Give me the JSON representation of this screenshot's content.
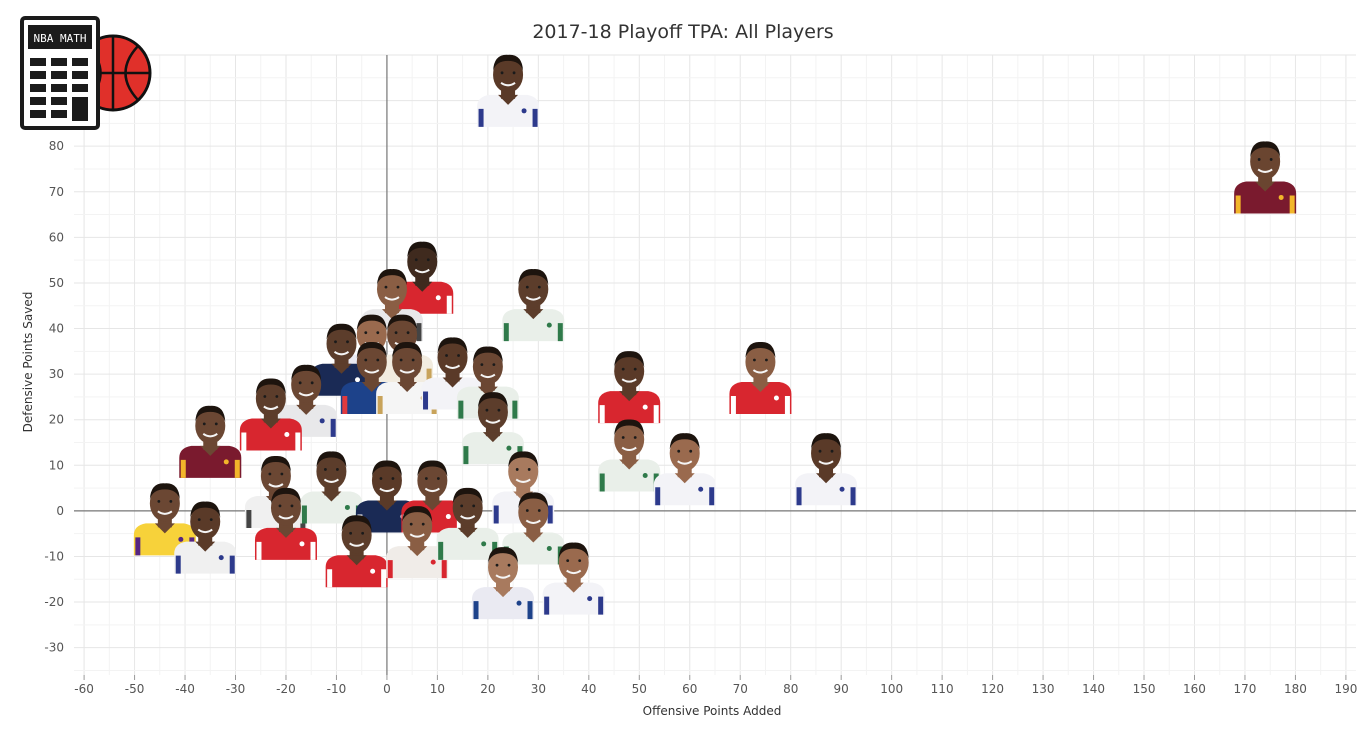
{
  "chart_data": {
    "type": "scatter",
    "title": "2017-18 Playoff TPA: All Players",
    "xlabel": "Offensive Points Added",
    "ylabel": "Defensive Points Saved",
    "xlim": [
      -62,
      192
    ],
    "ylim": [
      -36,
      100
    ],
    "xticks": [
      -60,
      -50,
      -40,
      -30,
      -20,
      -10,
      0,
      10,
      20,
      30,
      40,
      50,
      60,
      70,
      80,
      90,
      100,
      110,
      120,
      130,
      140,
      150,
      160,
      170,
      180,
      190
    ],
    "yticks": [
      -30,
      -20,
      -10,
      0,
      10,
      20,
      30,
      40,
      50,
      60,
      70,
      80
    ],
    "grid": true,
    "points": [
      {
        "x": 24,
        "y": 86,
        "jersey": "#f3f3f7",
        "trim": "#2d3a8c",
        "skin": "#5a3a28"
      },
      {
        "x": 174,
        "y": 67,
        "jersey": "#7a1a2e",
        "trim": "#f2b62a",
        "skin": "#6a4530"
      },
      {
        "x": 7,
        "y": 45,
        "jersey": "#d8262f",
        "trim": "#ffffff",
        "skin": "#3f2a1e"
      },
      {
        "x": 29,
        "y": 39,
        "jersey": "#e9efe9",
        "trim": "#2f7a4a",
        "skin": "#5c3d2b"
      },
      {
        "x": 1,
        "y": 39,
        "jersey": "#e8e8ea",
        "trim": "#444444",
        "skin": "#8a5e44"
      },
      {
        "x": -3,
        "y": 29,
        "jersey": "#eaeaf2",
        "trim": "#1d428a",
        "skin": "#9a6a4e"
      },
      {
        "x": 3,
        "y": 29,
        "jersey": "#f2ece0",
        "trim": "#c8a35a",
        "skin": "#6b4733"
      },
      {
        "x": -9,
        "y": 27,
        "jersey": "#1a2a55",
        "trim": "#ffffff",
        "skin": "#5c3d2b"
      },
      {
        "x": -3,
        "y": 23,
        "jersey": "#1d428a",
        "trim": "#e03a3e",
        "skin": "#6b4733"
      },
      {
        "x": 4,
        "y": 23,
        "jersey": "#f5f5f5",
        "trim": "#c8a35a",
        "skin": "#6b4733"
      },
      {
        "x": 13,
        "y": 24,
        "jersey": "#f3f3f7",
        "trim": "#2d3a8c",
        "skin": "#5a3a28"
      },
      {
        "x": 20,
        "y": 22,
        "jersey": "#e9efe9",
        "trim": "#2f7a4a",
        "skin": "#6b4733"
      },
      {
        "x": 48,
        "y": 21,
        "jersey": "#d8262f",
        "trim": "#ffffff",
        "skin": "#5a3a28"
      },
      {
        "x": 74,
        "y": 23,
        "jersey": "#d8262f",
        "trim": "#ffffff",
        "skin": "#8a5e44"
      },
      {
        "x": -16,
        "y": 18,
        "jersey": "#e8e8ea",
        "trim": "#2d3a8c",
        "skin": "#6b4733"
      },
      {
        "x": -23,
        "y": 15,
        "jersey": "#d8262f",
        "trim": "#ffffff",
        "skin": "#5c3d2b"
      },
      {
        "x": -35,
        "y": 9,
        "jersey": "#7a1a2e",
        "trim": "#f2b62a",
        "skin": "#6b4733"
      },
      {
        "x": 21,
        "y": 12,
        "jersey": "#e9efe9",
        "trim": "#2f7a4a",
        "skin": "#5c3d2b"
      },
      {
        "x": 48,
        "y": 6,
        "jersey": "#e9efe9",
        "trim": "#2f7a4a",
        "skin": "#8a5e44"
      },
      {
        "x": 59,
        "y": 3,
        "jersey": "#f3f3f7",
        "trim": "#2d3a8c",
        "skin": "#9a6a4e"
      },
      {
        "x": 87,
        "y": 3,
        "jersey": "#f3f3f7",
        "trim": "#2d3a8c",
        "skin": "#5a3a28"
      },
      {
        "x": -22,
        "y": -2,
        "jersey": "#f0f0f0",
        "trim": "#444444",
        "skin": "#6b4733"
      },
      {
        "x": -11,
        "y": -1,
        "jersey": "#e9efe9",
        "trim": "#2f7a4a",
        "skin": "#5c3d2b"
      },
      {
        "x": 0,
        "y": -3,
        "jersey": "#1a2a55",
        "trim": "#ffffff",
        "skin": "#5a3a28"
      },
      {
        "x": 9,
        "y": -3,
        "jersey": "#d8262f",
        "trim": "#ffffff",
        "skin": "#6b4733"
      },
      {
        "x": 27,
        "y": -1,
        "jersey": "#f3f3f7",
        "trim": "#2d3a8c",
        "skin": "#a87a5e"
      },
      {
        "x": -44,
        "y": -8,
        "jersey": "#f7d23a",
        "trim": "#552583",
        "skin": "#6b4733"
      },
      {
        "x": -36,
        "y": -12,
        "jersey": "#f0f0f0",
        "trim": "#2d3a8c",
        "skin": "#5a3a28"
      },
      {
        "x": -20,
        "y": -9,
        "jersey": "#d8262f",
        "trim": "#ffffff",
        "skin": "#6b4733"
      },
      {
        "x": -6,
        "y": -15,
        "jersey": "#d8262f",
        "trim": "#ffffff",
        "skin": "#5c3d2b"
      },
      {
        "x": 6,
        "y": -13,
        "jersey": "#f0ece8",
        "trim": "#d8262f",
        "skin": "#8a5e44"
      },
      {
        "x": 16,
        "y": -9,
        "jersey": "#e9efe9",
        "trim": "#2f7a4a",
        "skin": "#5c3d2b"
      },
      {
        "x": 29,
        "y": -10,
        "jersey": "#e9efe9",
        "trim": "#2f7a4a",
        "skin": "#8a5e44"
      },
      {
        "x": 23,
        "y": -22,
        "jersey": "#eaeaf2",
        "trim": "#1d428a",
        "skin": "#a87a5e"
      },
      {
        "x": 37,
        "y": -21,
        "jersey": "#f3f3f7",
        "trim": "#2d3a8c",
        "skin": "#9a6a4e"
      }
    ]
  },
  "logo": {
    "text": "NBA MATH",
    "calc_color": "#1b1b1b",
    "ball_color": "#e0302a"
  }
}
